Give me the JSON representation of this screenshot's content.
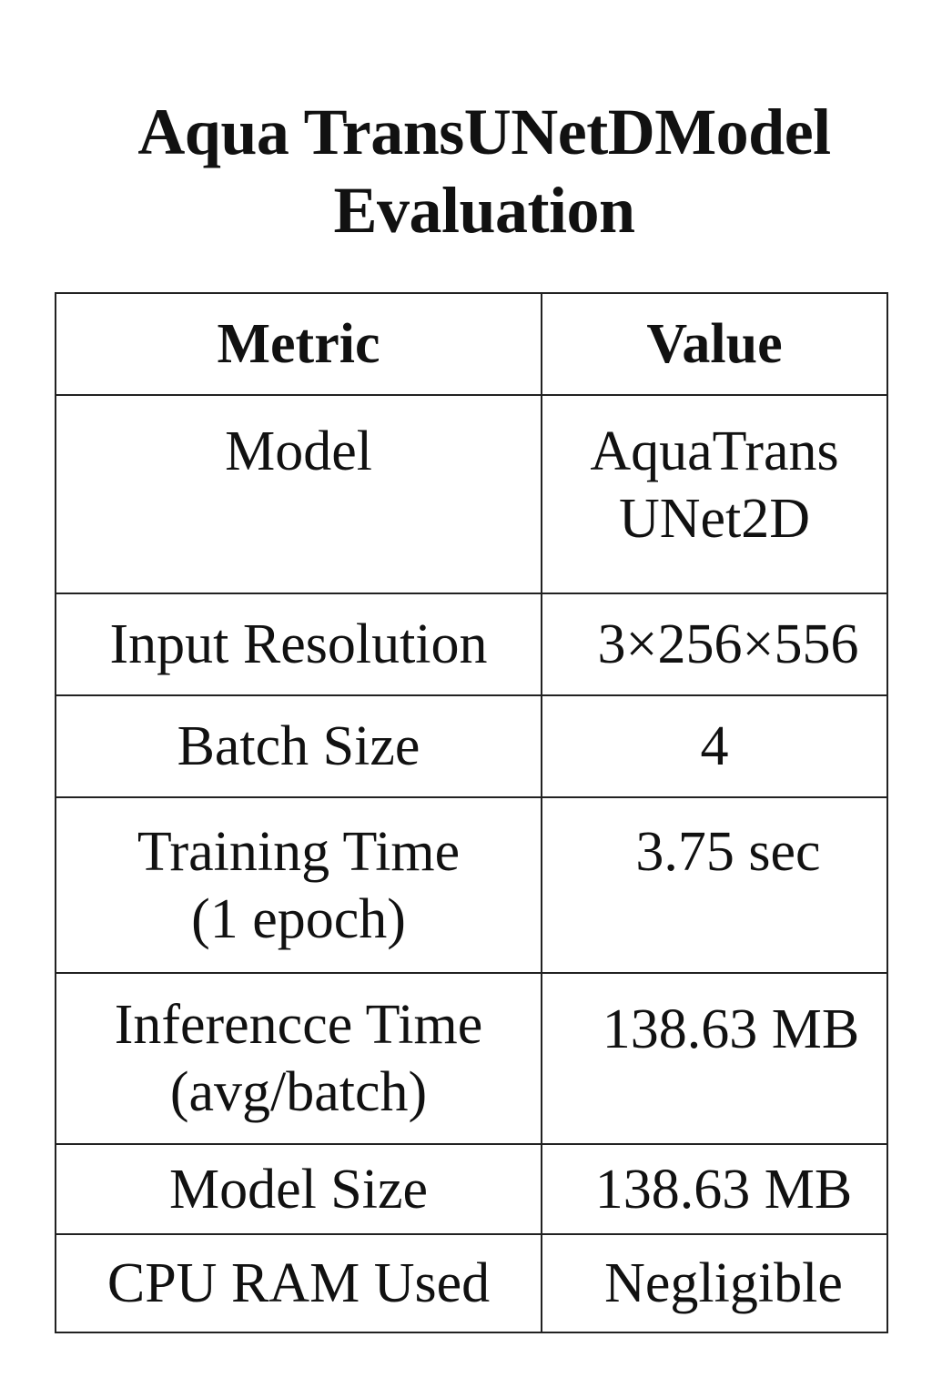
{
  "title": {
    "line1": "Aqua TransUNetDModel",
    "line2": "Evaluation"
  },
  "table": {
    "headers": [
      "Metric",
      "Value"
    ],
    "rows": [
      {
        "metric": [
          "Model"
        ],
        "value": [
          "AquaTrans",
          "UNet2D"
        ]
      },
      {
        "metric": [
          "Input Resolution"
        ],
        "value": [
          "3×256×556"
        ]
      },
      {
        "metric": [
          "Batch Size"
        ],
        "value": [
          "4"
        ]
      },
      {
        "metric": [
          "Training Time",
          "(1 epoch)"
        ],
        "value": [
          "3.75 sec"
        ]
      },
      {
        "metric": [
          "Inferencce Time",
          "(avg/batch)"
        ],
        "value": [
          "138.63 MB"
        ]
      },
      {
        "metric": [
          "Model Size"
        ],
        "value": [
          "138.63 MB"
        ]
      },
      {
        "metric": [
          "CPU RAM Used"
        ],
        "value": [
          "Negligible"
        ]
      }
    ]
  }
}
